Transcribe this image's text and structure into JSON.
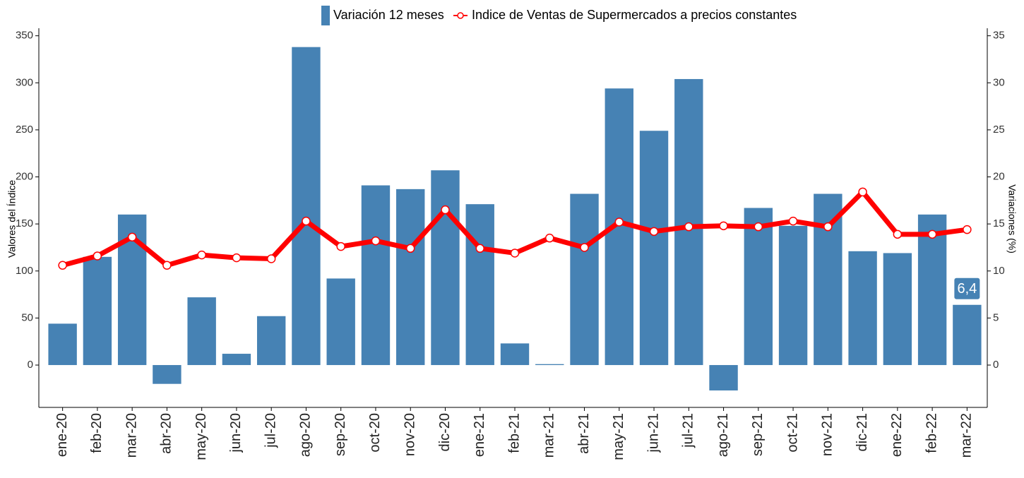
{
  "chart_data": {
    "type": "bar-line",
    "categories": [
      "ene-20",
      "feb-20",
      "mar-20",
      "abr-20",
      "may-20",
      "jun-20",
      "jul-20",
      "ago-20",
      "sep-20",
      "oct-20",
      "nov-20",
      "dic-20",
      "ene-21",
      "feb-21",
      "mar-21",
      "abr-21",
      "may-21",
      "jun-21",
      "jul-21",
      "ago-21",
      "sep-21",
      "oct-21",
      "nov-21",
      "dic-21",
      "ene-22",
      "feb-22",
      "mar-22"
    ],
    "series": [
      {
        "name": "Variación 12 meses",
        "type": "bar",
        "axis": "y2",
        "color": "#4682b4",
        "values": [
          4.4,
          11.5,
          16.0,
          -2.0,
          7.2,
          1.2,
          5.2,
          33.8,
          9.2,
          19.1,
          18.7,
          20.7,
          17.1,
          2.3,
          0.1,
          18.2,
          29.4,
          24.9,
          30.4,
          -2.7,
          16.7,
          14.8,
          18.2,
          12.1,
          11.9,
          16.0,
          6.4
        ],
        "value_labels": [
          null,
          null,
          null,
          null,
          null,
          null,
          null,
          null,
          null,
          null,
          null,
          null,
          null,
          null,
          null,
          null,
          null,
          null,
          null,
          null,
          null,
          null,
          null,
          null,
          null,
          null,
          "6,4"
        ]
      },
      {
        "name": "Indice de Ventas de Supermercados a precios constantes",
        "type": "line",
        "axis": "y",
        "color": "#ff0000",
        "values": [
          106,
          116,
          136,
          106,
          117,
          114,
          113,
          153,
          126,
          132,
          124,
          165,
          124,
          119,
          135,
          125,
          152,
          142,
          147,
          148,
          147,
          153,
          147,
          184,
          139,
          139,
          144
        ]
      }
    ],
    "ylabel": "Valores del Índice",
    "y2label": "Variaciones (%)",
    "ylim": [
      -45,
      358
    ],
    "yticks": [
      0,
      50,
      100,
      150,
      200,
      250,
      300,
      350
    ],
    "y2lim": [
      -4.5,
      35.8
    ],
    "y2ticks": [
      0,
      5,
      10,
      15,
      20,
      25,
      30,
      35
    ],
    "legend": "top"
  }
}
